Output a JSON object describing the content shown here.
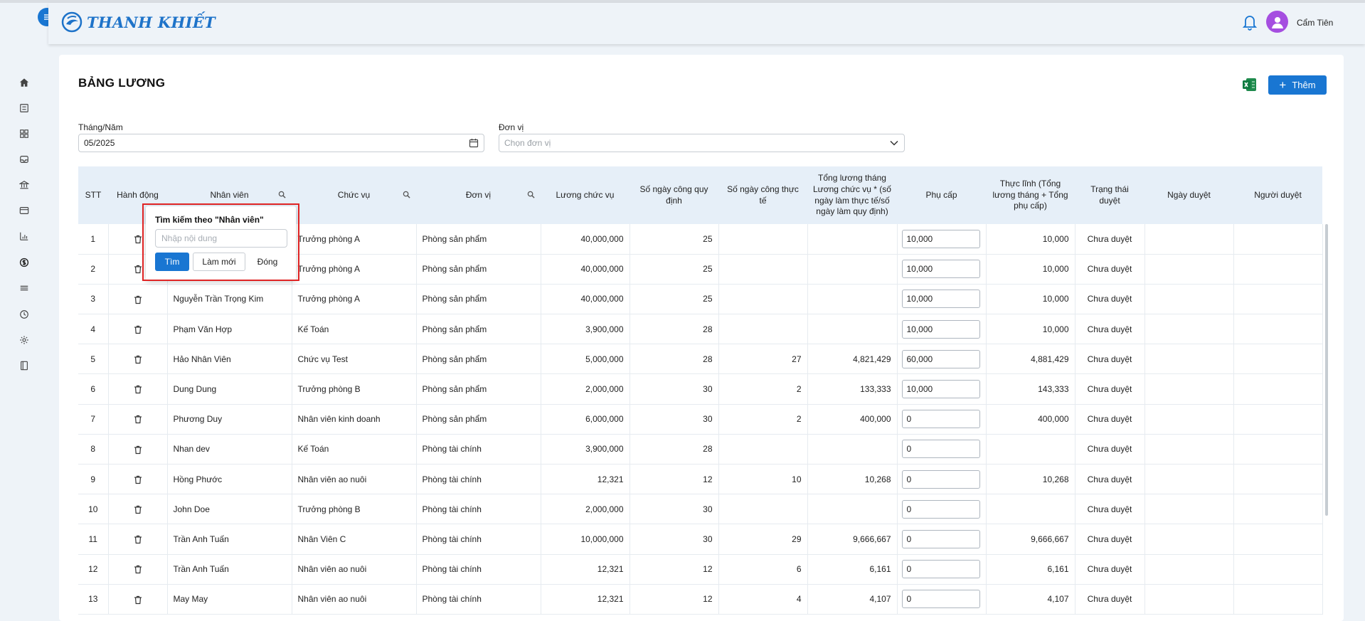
{
  "app": {
    "brand": "THANH KHIẾT",
    "user_name": "Cẩm Tiên"
  },
  "sidebar": {
    "items": [
      "home-icon",
      "list-check-icon",
      "grid-icon",
      "inbox-icon",
      "bank-icon",
      "card-icon",
      "chart-icon",
      "money-icon",
      "layers-icon",
      "history-icon",
      "gear-icon",
      "book-icon"
    ]
  },
  "page": {
    "title": "BẢNG LƯƠNG",
    "add_label": "Thêm"
  },
  "filters": {
    "month_label": "Tháng/Năm",
    "month_value": "05/2025",
    "unit_label": "Đơn vị",
    "unit_placeholder": "Chọn đơn vị"
  },
  "table": {
    "headers": [
      "STT",
      "Hành động",
      "Nhân viên",
      "Chức vụ",
      "Đơn vị",
      "Lương chức vụ",
      "Số ngày công quy định",
      "Số ngày công thực tế",
      "Tổng lương tháng Lương chức vụ * (số ngày làm thực tế/số ngày làm quy định)",
      "Phụ cấp",
      "Thực lĩnh (Tổng lương tháng + Tổng phụ cấp)",
      "Trạng thái duyệt",
      "Ngày duyệt",
      "Người duyệt"
    ],
    "rows": [
      {
        "stt": "1",
        "name": "",
        "position": "Trưởng phòng A",
        "unit": "Phòng sản phẩm",
        "salary": "40,000,000",
        "days_required": "25",
        "days_actual": "",
        "total": "",
        "allowance": "10,000",
        "net": "10,000",
        "status": "Chưa duyệt",
        "date": "",
        "approver": ""
      },
      {
        "stt": "2",
        "name": "",
        "position": "Trưởng phòng A",
        "unit": "Phòng sản phẩm",
        "salary": "40,000,000",
        "days_required": "25",
        "days_actual": "",
        "total": "",
        "allowance": "10,000",
        "net": "10,000",
        "status": "Chưa duyệt",
        "date": "",
        "approver": ""
      },
      {
        "stt": "3",
        "name": "Nguyễn Trần Trọng Kim",
        "position": "Trưởng phòng A",
        "unit": "Phòng sản phẩm",
        "salary": "40,000,000",
        "days_required": "25",
        "days_actual": "",
        "total": "",
        "allowance": "10,000",
        "net": "10,000",
        "status": "Chưa duyệt",
        "date": "",
        "approver": ""
      },
      {
        "stt": "4",
        "name": "Phạm Văn Hợp",
        "position": "Kế Toán",
        "unit": "Phòng sản phẩm",
        "salary": "3,900,000",
        "days_required": "28",
        "days_actual": "",
        "total": "",
        "allowance": "10,000",
        "net": "10,000",
        "status": "Chưa duyệt",
        "date": "",
        "approver": ""
      },
      {
        "stt": "5",
        "name": "Hảo Nhân Viên",
        "position": "Chức vụ Test",
        "unit": "Phòng sản phẩm",
        "salary": "5,000,000",
        "days_required": "28",
        "days_actual": "27",
        "total": "4,821,429",
        "allowance": "60,000",
        "net": "4,881,429",
        "status": "Chưa duyệt",
        "date": "",
        "approver": ""
      },
      {
        "stt": "6",
        "name": "Dung Dung",
        "position": "Trưởng phòng B",
        "unit": "Phòng sản phẩm",
        "salary": "2,000,000",
        "days_required": "30",
        "days_actual": "2",
        "total": "133,333",
        "allowance": "10,000",
        "net": "143,333",
        "status": "Chưa duyệt",
        "date": "",
        "approver": ""
      },
      {
        "stt": "7",
        "name": "Phương Duy",
        "position": "Nhân viên kinh doanh",
        "unit": "Phòng sản phẩm",
        "salary": "6,000,000",
        "days_required": "30",
        "days_actual": "2",
        "total": "400,000",
        "allowance": "0",
        "net": "400,000",
        "status": "Chưa duyệt",
        "date": "",
        "approver": ""
      },
      {
        "stt": "8",
        "name": "Nhan dev",
        "position": "Kế Toán",
        "unit": "Phòng tài chính",
        "salary": "3,900,000",
        "days_required": "28",
        "days_actual": "",
        "total": "",
        "allowance": "0",
        "net": "",
        "status": "Chưa duyệt",
        "date": "",
        "approver": ""
      },
      {
        "stt": "9",
        "name": "Hồng Phước",
        "position": "Nhân viên ao nuôi",
        "unit": "Phòng tài chính",
        "salary": "12,321",
        "days_required": "12",
        "days_actual": "10",
        "total": "10,268",
        "allowance": "0",
        "net": "10,268",
        "status": "Chưa duyệt",
        "date": "",
        "approver": ""
      },
      {
        "stt": "10",
        "name": "John Doe",
        "position": "Trưởng phòng B",
        "unit": "Phòng tài chính",
        "salary": "2,000,000",
        "days_required": "30",
        "days_actual": "",
        "total": "",
        "allowance": "0",
        "net": "",
        "status": "Chưa duyệt",
        "date": "",
        "approver": ""
      },
      {
        "stt": "11",
        "name": "Trần Anh Tuấn",
        "position": "Nhân Viên C",
        "unit": "Phòng tài chính",
        "salary": "10,000,000",
        "days_required": "30",
        "days_actual": "29",
        "total": "9,666,667",
        "allowance": "0",
        "net": "9,666,667",
        "status": "Chưa duyệt",
        "date": "",
        "approver": ""
      },
      {
        "stt": "12",
        "name": "Trần Anh Tuấn",
        "position": "Nhân viên ao nuôi",
        "unit": "Phòng tài chính",
        "salary": "12,321",
        "days_required": "12",
        "days_actual": "6",
        "total": "6,161",
        "allowance": "0",
        "net": "6,161",
        "status": "Chưa duyệt",
        "date": "",
        "approver": ""
      },
      {
        "stt": "13",
        "name": "May May",
        "position": "Nhân viên ao nuôi",
        "unit": "Phòng tài chính",
        "salary": "12,321",
        "days_required": "12",
        "days_actual": "4",
        "total": "4,107",
        "allowance": "0",
        "net": "4,107",
        "status": "Chưa duyệt",
        "date": "",
        "approver": ""
      }
    ]
  },
  "popover": {
    "title": "Tìm kiếm theo \"Nhân viên\"",
    "placeholder": "Nhập nội dung",
    "find_label": "Tìm",
    "reset_label": "Làm mới",
    "close_label": "Đóng"
  }
}
